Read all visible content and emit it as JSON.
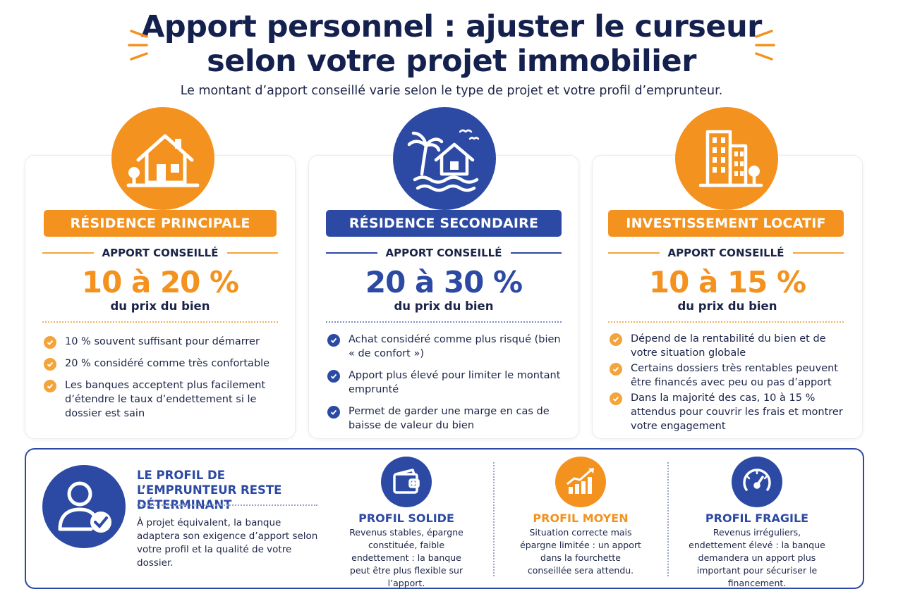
{
  "header": {
    "title_line1": "Apport personnel : ajuster le curseur",
    "title_line2": "selon votre projet immobilier",
    "subtitle": "Le montant d’apport conseillé varie selon le type de projet et votre profil d’emprunteur."
  },
  "colors": {
    "orange": "#f3921e",
    "blue": "#2c4aa3",
    "navy": "#14214f"
  },
  "cards": [
    {
      "icon": "house-icon",
      "label": "RÉSIDENCE PRINCIPALE",
      "apport_label": "APPORT CONSEILLÉ",
      "range": "10 à 20 %",
      "range_sub": "du prix du bien",
      "bullets": [
        "10 % souvent suffisant pour démarrer",
        "20 % considéré comme très confortable",
        "Les banques acceptent plus facilement d’étendre le taux d’endettement si le dossier est sain"
      ]
    },
    {
      "icon": "beach-house-icon",
      "label": "RÉSIDENCE SECONDAIRE",
      "apport_label": "APPORT CONSEILLÉ",
      "range": "20 à 30 %",
      "range_sub": "du prix du bien",
      "bullets": [
        "Achat considéré comme plus risqué (bien « de confort »)",
        "Apport plus élevé pour limiter le montant emprunté",
        "Permet de garder une marge en cas de baisse de valeur du bien"
      ]
    },
    {
      "icon": "building-icon",
      "label": "INVESTISSEMENT LOCATIF",
      "apport_label": "APPORT CONSEILLÉ",
      "range": "10 à 15 %",
      "range_sub": "du prix du bien",
      "bullets": [
        "Dépend de la rentabilité du bien et de votre situation globale",
        "Certains dossiers très rentables peuvent être financés avec peu ou pas d’apport",
        "Dans la majorité des cas, 10 à 15 % attendus pour couvrir les frais et montrer votre engagement"
      ]
    }
  ],
  "profil": {
    "title": "LE PROFIL DE L’EMPRUNTEUR RESTE DÉTERMINANT",
    "text": "À projet équivalent, la banque adaptera son exigence d’apport selon votre profil et la qualité de votre dossier.",
    "items": [
      {
        "icon": "wallet-icon",
        "name": "PROFIL SOLIDE",
        "desc": "Revenus stables, épargne constituée, faible endettement : la banque peut être plus flexible sur l’apport."
      },
      {
        "icon": "growth-chart-icon",
        "name": "PROFIL MOYEN",
        "desc": "Situation correcte mais épargne limitée : un apport dans la fourchette conseillée sera attendu."
      },
      {
        "icon": "gauge-icon",
        "name": "PROFIL FRAGILE",
        "desc": "Revenus irréguliers, endettement élevé : la banque demandera un apport plus important pour sécuriser le financement."
      }
    ]
  }
}
